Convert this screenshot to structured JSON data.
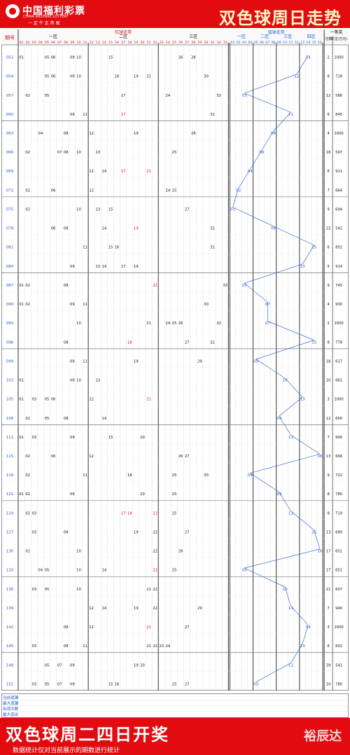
{
  "header": {
    "brand": "中国福利彩票",
    "brand_en": "CHINA WELFARE LOTTERY",
    "slogan": "一 定 牛 走 势 图",
    "title": "双色球周日走势"
  },
  "table": {
    "col_issue": "期号",
    "red_title": "红球走势",
    "blue_title": "蓝球走势",
    "first_prize": "一等奖",
    "zone_labels": [
      "一区",
      "二区",
      "三区"
    ],
    "blue_zone_labels": [
      "一区",
      "二区",
      "三区",
      "四区"
    ],
    "prize_count": "注数",
    "prize_amount": "单注(万元)"
  },
  "chart_data": {
    "type": "table",
    "title": "双色球周日走势",
    "red_numbers": [
      "01",
      "02",
      "03",
      "04",
      "05",
      "06",
      "07",
      "08",
      "09",
      "10",
      "11",
      "12",
      "13",
      "14",
      "15",
      "16",
      "17",
      "18",
      "19",
      "20",
      "21",
      "22",
      "23",
      "24",
      "25",
      "26",
      "27",
      "28",
      "29",
      "30",
      "31",
      "32",
      "33"
    ],
    "blue_numbers": [
      "01",
      "02",
      "03",
      "04",
      "05",
      "06",
      "07",
      "08",
      "09",
      "10",
      "11",
      "12",
      "13",
      "14",
      "15",
      "16"
    ],
    "rows": [
      {
        "issue": "051",
        "reds": [
          1,
          5,
          6,
          9,
          10,
          15,
          26,
          28
        ],
        "blue": 14,
        "count": "2",
        "prize": "1000"
      },
      {
        "issue": "054",
        "reds": [
          5,
          6,
          9,
          10,
          16,
          19,
          21,
          30
        ],
        "blue": 12,
        "count": "8",
        "prize": "718"
      },
      {
        "issue": "057",
        "reds": [
          2,
          5,
          17,
          24,
          32
        ],
        "blue": 3,
        "count": "12",
        "prize": "586"
      },
      {
        "issue": "060",
        "reds": [
          9,
          11,
          17,
          31
        ],
        "blue": 11,
        "count": "6",
        "prize": "845"
      },
      {
        "issue": "063",
        "reds": [
          4,
          8,
          12,
          19,
          28
        ],
        "blue": 8,
        "count": "4",
        "prize": "1000"
      },
      {
        "issue": "066",
        "reds": [
          2,
          7,
          8,
          10,
          13,
          25
        ],
        "blue": 6,
        "count": "18",
        "prize": "597"
      },
      {
        "issue": "069",
        "reds": [
          12,
          14,
          17,
          21
        ],
        "blue": 4,
        "count": "6",
        "prize": "911"
      },
      {
        "issue": "072",
        "reds": [
          2,
          6,
          12,
          24,
          25
        ],
        "blue": 2,
        "count": "7",
        "prize": "664"
      },
      {
        "issue": "075",
        "reds": [
          2,
          10,
          13,
          15,
          27
        ],
        "blue": 1,
        "count": "9",
        "prize": "694"
      },
      {
        "issue": "078",
        "reds": [
          6,
          8,
          14,
          19,
          31
        ],
        "blue": 8,
        "count": "22",
        "prize": "542"
      },
      {
        "issue": "081",
        "reds": [
          11,
          15,
          16,
          31
        ],
        "blue": 15,
        "count": "6",
        "prize": "852"
      },
      {
        "issue": "084",
        "reds": [
          9,
          13,
          14,
          17,
          19
        ],
        "blue": 13,
        "count": "5",
        "prize": "914"
      },
      {
        "issue": "087",
        "reds": [
          1,
          2,
          8,
          22,
          33
        ],
        "blue": 3,
        "count": "9",
        "prize": "745"
      },
      {
        "issue": "090",
        "reds": [
          1,
          2,
          9,
          11,
          30
        ],
        "blue": 7,
        "count": "4",
        "prize": "930"
      },
      {
        "issue": "093",
        "reds": [
          10,
          21,
          24,
          25,
          26,
          32
        ],
        "blue": 7,
        "count": "2",
        "prize": "1000"
      },
      {
        "issue": "096",
        "reds": [
          8,
          18,
          27,
          31
        ],
        "blue": 15,
        "count": "8",
        "prize": "778"
      },
      {
        "issue": "099",
        "reds": [
          9,
          11,
          19,
          29
        ],
        "blue": 5,
        "count": "18",
        "prize": "617"
      },
      {
        "issue": "102",
        "reds": [
          1,
          9,
          10,
          13
        ],
        "blue": 10,
        "count": "10",
        "prize": "661"
      },
      {
        "issue": "105",
        "reds": [
          1,
          3,
          5,
          6,
          12,
          21
        ],
        "blue": 13,
        "count": "3",
        "prize": "1000"
      },
      {
        "issue": "108",
        "reds": [
          2,
          5,
          8,
          14
        ],
        "blue": 9,
        "count": "12",
        "prize": "600"
      },
      {
        "issue": "111",
        "reds": [
          1,
          3,
          9,
          15,
          20
        ],
        "blue": 11,
        "count": "7",
        "prize": "906"
      },
      {
        "issue": "115",
        "reds": [
          2,
          6,
          12,
          26,
          27
        ],
        "blue": 16,
        "count": "13",
        "prize": "668"
      },
      {
        "issue": "118",
        "reds": [
          2,
          11,
          18,
          25,
          30
        ],
        "blue": 4,
        "count": "9",
        "prize": "722"
      },
      {
        "issue": "121",
        "reds": [
          1,
          2,
          9,
          20,
          25
        ],
        "blue": 9,
        "count": "8",
        "prize": "780"
      },
      {
        "issue": "124",
        "reds": [
          2,
          3,
          17,
          18,
          22,
          25
        ],
        "blue": 11,
        "count": "8",
        "prize": "719"
      },
      {
        "issue": "127",
        "reds": [
          3,
          8,
          19,
          22,
          27
        ],
        "blue": 15,
        "count": "13",
        "prize": "689"
      },
      {
        "issue": "130",
        "reds": [
          2,
          10,
          22,
          26
        ],
        "blue": 16,
        "count": "17",
        "prize": "651"
      },
      {
        "issue": "133",
        "reds": [
          4,
          5,
          10,
          14,
          22,
          25
        ],
        "blue": 3,
        "count": "17",
        "prize": "651"
      },
      {
        "issue": "136",
        "reds": [
          3,
          5,
          10,
          21,
          22
        ],
        "blue": 10,
        "count": "21",
        "prize": "607"
      },
      {
        "issue": "139",
        "reds": [
          12,
          14,
          19,
          22,
          29
        ],
        "blue": 11,
        "count": "7",
        "prize": "946"
      },
      {
        "issue": "142",
        "reds": [
          8,
          12,
          21,
          27
        ],
        "blue": 14,
        "count": "3",
        "prize": "1000"
      },
      {
        "issue": "145",
        "reds": [
          3,
          8,
          11,
          21,
          22,
          23,
          24
        ],
        "blue": 13,
        "count": "6",
        "prize": "832"
      },
      {
        "issue": "148",
        "reds": [
          5,
          7,
          9,
          19,
          20
        ],
        "blue": 11,
        "count": "39",
        "prize": "541"
      },
      {
        "issue": "151",
        "reds": [
          3,
          5,
          7,
          9,
          15,
          16,
          25,
          27
        ],
        "blue": 5,
        "count": "10",
        "prize": "780"
      }
    ],
    "summary_rows": [
      "当前遗漏",
      "最大遗漏",
      "出现次数",
      "最大连出"
    ]
  },
  "footer": {
    "title": "双色球周二四日开奖",
    "note": "数据统计仅对当前展示的期数进行统计",
    "sign": "裕辰达"
  }
}
